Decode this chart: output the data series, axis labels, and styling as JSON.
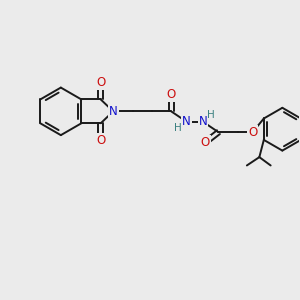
{
  "bg_color": "#ebebeb",
  "bond_color": "#1a1a1a",
  "bond_width": 1.4,
  "atom_colors": {
    "N": "#1010cc",
    "O": "#cc1010",
    "H": "#3a8080",
    "C": "#1a1a1a"
  },
  "font_size_atom": 8.5
}
